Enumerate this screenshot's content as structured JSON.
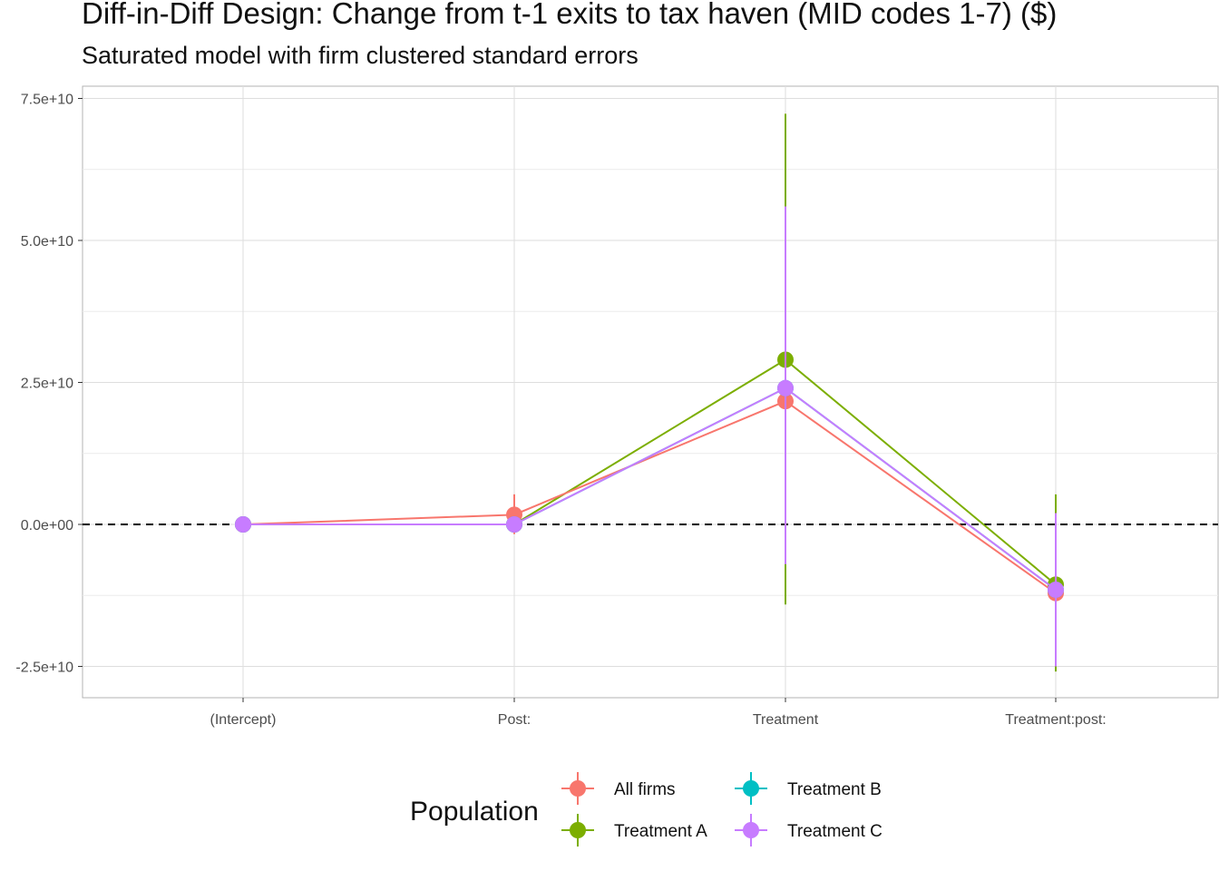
{
  "chart_data": {
    "type": "line",
    "title": "Diff-in-Diff Design: Change from t-1 exits to tax haven (MID codes 1-7)  ($)",
    "subtitle": "Saturated model with firm clustered standard errors",
    "xlabel": "",
    "ylabel": "",
    "categories": [
      "(Intercept)",
      "Post:",
      "Treatment",
      "Treatment:post:"
    ],
    "ylim": [
      -26000000000,
      80000000000
    ],
    "yticks": [
      -25000000000,
      0,
      25000000000,
      50000000000,
      75000000000
    ],
    "ytick_labels": [
      "-2.5e+10",
      "0.0e+00",
      "2.5e+10",
      "5.0e+10",
      "7.5e+10"
    ],
    "reference_line": 0,
    "grid": true,
    "legend": {
      "title": "Population",
      "placement": "bottom"
    },
    "series": [
      {
        "name": "All firms",
        "color": "#F8766D",
        "values": [
          0,
          1700000000,
          21700000000,
          -12100000000
        ],
        "lower": [
          0,
          -1700000000,
          21700000000,
          -12100000000
        ],
        "upper": [
          0,
          5300000000,
          21700000000,
          -12100000000
        ]
      },
      {
        "name": "Treatment A",
        "color": "#7CAE00",
        "values": [
          0,
          0,
          29000000000,
          -10600000000
        ],
        "lower": [
          0,
          0,
          -14100000000,
          -25900000000
        ],
        "upper": [
          0,
          0,
          72300000000,
          5300000000
        ]
      },
      {
        "name": "Treatment B",
        "color": "#00BFC4",
        "values": [
          0,
          0,
          24000000000,
          -11500000000
        ],
        "lower": [
          0,
          0,
          -7000000000,
          -25000000000
        ],
        "upper": [
          0,
          0,
          56000000000,
          2000000000
        ]
      },
      {
        "name": "Treatment C",
        "color": "#C77CFF",
        "values": [
          0,
          0,
          24000000000,
          -11500000000
        ],
        "lower": [
          0,
          0,
          -7000000000,
          -25000000000
        ],
        "upper": [
          0,
          0,
          56000000000,
          2000000000
        ]
      }
    ]
  }
}
